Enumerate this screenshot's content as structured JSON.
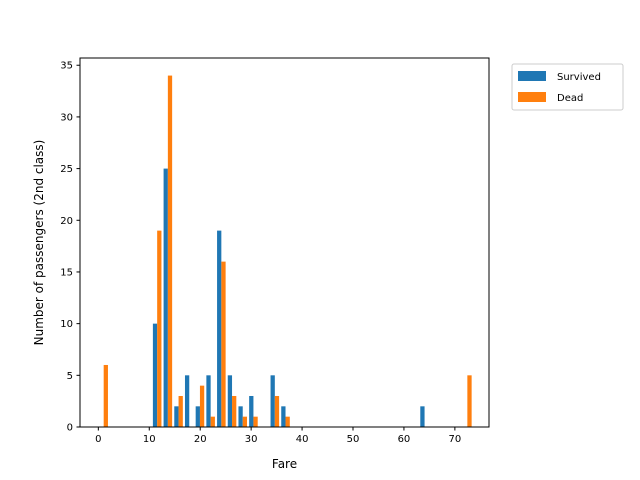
{
  "chart_data": {
    "type": "bar",
    "xlabel": "Fare",
    "ylabel": "Number of passengers (2nd class)",
    "xlim": [
      -3.6,
      76.7
    ],
    "ylim": [
      0,
      35.7
    ],
    "xticks": [
      0,
      10,
      20,
      30,
      40,
      50,
      60,
      70
    ],
    "yticks": [
      0,
      5,
      10,
      15,
      20,
      25,
      30,
      35
    ],
    "bin_edges": [
      0,
      2.1,
      4.2,
      6.3,
      8.4,
      10.5,
      12.6,
      14.7,
      16.8,
      18.9,
      21.0,
      23.1,
      25.2,
      27.3,
      29.4,
      31.5,
      33.6,
      35.7,
      37.8,
      39.9,
      42.0,
      44.1,
      46.2,
      48.3,
      50.4,
      52.5,
      54.6,
      56.7,
      58.8,
      60.9,
      63.0,
      65.1,
      67.2,
      69.3,
      71.4,
      73.5
    ],
    "legend_position": "outside-top-right",
    "grid": false,
    "series": [
      {
        "name": "Survived",
        "color": "#1f77b4",
        "values": [
          0,
          0,
          0,
          0,
          0,
          10,
          25,
          2,
          5,
          2,
          5,
          19,
          5,
          2,
          3,
          0,
          5,
          2,
          0,
          0,
          0,
          0,
          0,
          0,
          0,
          0,
          0,
          0,
          0,
          0,
          2,
          0,
          0,
          0,
          0
        ]
      },
      {
        "name": "Dead",
        "color": "#ff7f0e",
        "values": [
          6,
          0,
          0,
          0,
          0,
          19,
          34,
          3,
          0,
          4,
          1,
          16,
          3,
          1,
          1,
          0,
          3,
          1,
          0,
          0,
          0,
          0,
          0,
          0,
          0,
          0,
          0,
          0,
          0,
          0,
          0,
          0,
          0,
          0,
          5
        ]
      }
    ]
  }
}
